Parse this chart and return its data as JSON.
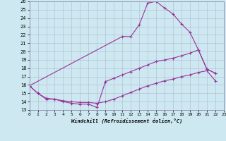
{
  "xlabel": "Windchill (Refroidissement éolien,°C)",
  "background_color": "#cde8f0",
  "grid_color": "#b0b8d0",
  "line_color": "#993399",
  "xlim": [
    0,
    23
  ],
  "ylim": [
    13,
    26
  ],
  "xticks": [
    0,
    1,
    2,
    3,
    4,
    5,
    6,
    7,
    8,
    9,
    10,
    11,
    12,
    13,
    14,
    15,
    16,
    17,
    18,
    19,
    20,
    21,
    22,
    23
  ],
  "yticks": [
    13,
    14,
    15,
    16,
    17,
    18,
    19,
    20,
    21,
    22,
    23,
    24,
    25,
    26
  ],
  "lines_data": {
    "line1_x": [
      0,
      1,
      2,
      3,
      4,
      5,
      6,
      7,
      8,
      9
    ],
    "line1_y": [
      15.9,
      15.0,
      14.3,
      14.3,
      14.0,
      13.8,
      13.7,
      13.7,
      13.3,
      16.4
    ],
    "line2_x": [
      0,
      11,
      12,
      13,
      14,
      15,
      16,
      17,
      18,
      19,
      20,
      21,
      22
    ],
    "line2_y": [
      15.9,
      21.8,
      21.8,
      23.2,
      25.8,
      26.0,
      25.2,
      24.5,
      23.3,
      22.3,
      20.2,
      17.9,
      17.4
    ],
    "line3_x": [
      0,
      1,
      2,
      3,
      4,
      5,
      6,
      7,
      8,
      9,
      10,
      11,
      12,
      13,
      14,
      15,
      16,
      17,
      18,
      19,
      20,
      21,
      22
    ],
    "line3_y": [
      15.9,
      15.0,
      14.4,
      14.3,
      14.1,
      14.0,
      13.9,
      13.9,
      13.8,
      14.0,
      14.3,
      14.7,
      15.1,
      15.5,
      15.9,
      16.2,
      16.5,
      16.7,
      17.0,
      17.2,
      17.5,
      17.7,
      16.5
    ],
    "line4_x": [
      9,
      10,
      11,
      12,
      13,
      14,
      15,
      16,
      17,
      18,
      19,
      20,
      21,
      22
    ],
    "line4_y": [
      16.4,
      16.8,
      17.2,
      17.6,
      18.0,
      18.4,
      18.8,
      19.0,
      19.2,
      19.5,
      19.8,
      20.2,
      17.9,
      17.4
    ]
  }
}
